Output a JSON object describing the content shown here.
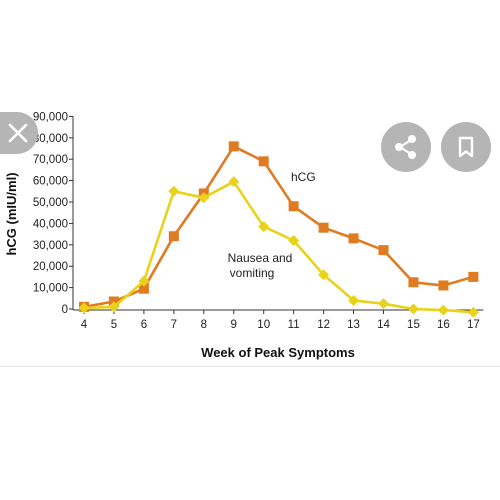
{
  "chart_data": {
    "type": "line",
    "xlabel": "Week of Peak Symptoms",
    "ylabel": "hCG (mIU/ml)",
    "x": [
      4,
      5,
      6,
      7,
      8,
      9,
      10,
      11,
      12,
      13,
      14,
      15,
      16,
      17
    ],
    "xlim": [
      4,
      17
    ],
    "ylim": [
      0,
      90000
    ],
    "yticks": [
      "0",
      "10,000",
      "20,000",
      "30,000",
      "40,000",
      "50,000",
      "60,000",
      "70,000",
      "80,000",
      "90,000"
    ],
    "grid": false,
    "series": [
      {
        "name": "hCG",
        "color": "#e07b22",
        "marker": "square",
        "values": [
          1000,
          3500,
          9500,
          34000,
          54000,
          76000,
          69000,
          48000,
          38000,
          33000,
          27500,
          12500,
          11000,
          15000
        ]
      },
      {
        "name": "Nausea and vomiting",
        "color": "#e8d31a",
        "marker": "diamond",
        "values": [
          500,
          1000,
          13000,
          55000,
          52000,
          59500,
          38500,
          32000,
          16000,
          4000,
          2500,
          0,
          -500,
          -1500
        ]
      }
    ],
    "annotations": [
      {
        "text": "hCG",
        "series": "hCG"
      },
      {
        "lines": [
          "Nausea and",
          "vomiting"
        ],
        "series": "Nausea and vomiting"
      }
    ]
  },
  "overlay": {
    "close_icon": "close-icon",
    "share_icon": "share-icon",
    "bookmark_icon": "bookmark-icon",
    "button_color": "#b5b5b5"
  }
}
